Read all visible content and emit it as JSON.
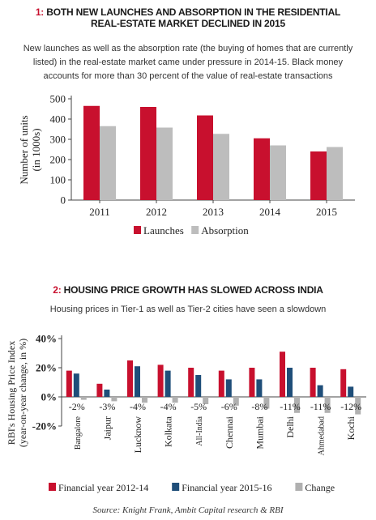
{
  "chart_data": [
    {
      "type": "bar",
      "number": "1:",
      "title": "BOTH NEW LAUNCHES AND ABSORPTION IN THE RESIDENTIAL REAL-ESTATE MARKET DECLINED IN 2015",
      "subtitle": "New launches as well as the absorption rate (the buying of homes that are currently listed) in the real-estate market came under pressure in 2014-15. Black money accounts for more than 30 percent of the value of real-estate transactions",
      "ylabel": "Number of units (in 1000s)",
      "ylabel_lines": [
        "Number of units",
        "(in 1000s)"
      ],
      "categories": [
        "2011",
        "2012",
        "2013",
        "2014",
        "2015"
      ],
      "ylim": [
        0,
        500
      ],
      "yticks": [
        "0",
        "100",
        "200",
        "300",
        "400",
        "500"
      ],
      "series": [
        {
          "name": "Launches",
          "color": "#c8102e",
          "values": [
            465,
            460,
            418,
            305,
            240
          ]
        },
        {
          "name": "Absorption",
          "color": "#bdbdbd",
          "values": [
            365,
            358,
            327,
            270,
            262
          ]
        }
      ],
      "legend": "bottom",
      "grid": false
    },
    {
      "type": "bar",
      "number": "2:",
      "title": "HOUSING PRICE GROWTH HAS SLOWED ACROSS INDIA",
      "subtitle": "Housing prices in Tier-1 as well as Tier-2 cities have seen a slowdown",
      "ylabel": "RBI's Housing Price Index (year-on-year change, in %)",
      "ylabel_lines": [
        "RBI's Housing Price Index",
        "(year-on-year change, in %)"
      ],
      "categories": [
        "Bangalore",
        "Jaipur",
        "Lucknow",
        "Kolkata",
        "All-India",
        "Chennai",
        "Mumbai",
        "Delhi",
        "Ahmedabad",
        "Kochi"
      ],
      "ylim": [
        -20,
        40
      ],
      "yticks": [
        "-20%",
        "0%",
        "20%",
        "40%"
      ],
      "series": [
        {
          "name": "Financial year 2012-14",
          "color": "#c8102e",
          "values": [
            18,
            9,
            25,
            22,
            20,
            18,
            20,
            31,
            20,
            19
          ]
        },
        {
          "name": "Financial year 2015-16",
          "color": "#1f4e79",
          "values": [
            16,
            5,
            21,
            18,
            15,
            12,
            12,
            20,
            8,
            7
          ]
        },
        {
          "name": "Change",
          "color": "#b0b0b0",
          "values": [
            -2,
            -3,
            -4,
            -4,
            -5,
            -6,
            -8,
            -11,
            -11,
            -12
          ]
        }
      ],
      "change_labels": [
        "-2%",
        "-3%",
        "-4%",
        "-4%",
        "-5%",
        "-6%",
        "-8%",
        "-11%",
        "-11%",
        "-12%"
      ],
      "legend": "bottom",
      "grid": false
    }
  ],
  "source": "Source: Knight Frank, Ambit Capital research & RBI"
}
